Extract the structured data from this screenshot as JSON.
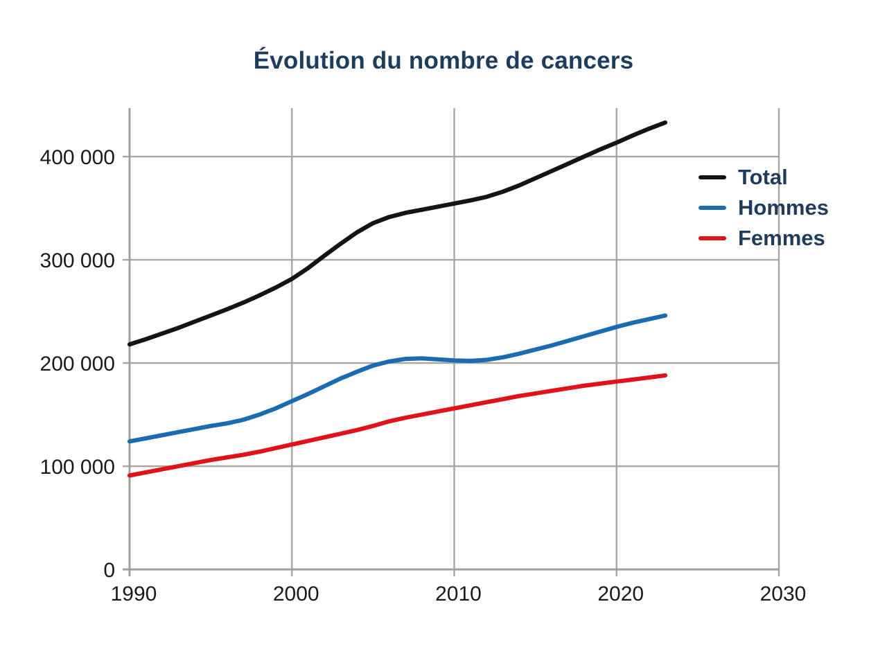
{
  "chart_data": {
    "type": "line",
    "title": "Évolution du nombre de cancers",
    "xlabel": "",
    "ylabel": "",
    "xlim": [
      1990,
      2030
    ],
    "ylim": [
      0,
      447000
    ],
    "grid": true,
    "legend_position": "right-inside",
    "x_ticks": [
      {
        "value": 1990,
        "label": "1990"
      },
      {
        "value": 2000,
        "label": "2000"
      },
      {
        "value": 2010,
        "label": "2010"
      },
      {
        "value": 2020,
        "label": "2020"
      },
      {
        "value": 2030,
        "label": "2030"
      }
    ],
    "y_ticks": [
      {
        "value": 0,
        "label": "0"
      },
      {
        "value": 100000,
        "label": "100 000"
      },
      {
        "value": 200000,
        "label": "200 000"
      },
      {
        "value": 300000,
        "label": "300 000"
      },
      {
        "value": 400000,
        "label": "400 000"
      }
    ],
    "x": [
      1990,
      1991,
      1992,
      1993,
      1994,
      1995,
      1996,
      1997,
      1998,
      1999,
      2000,
      2001,
      2002,
      2003,
      2004,
      2005,
      2006,
      2007,
      2008,
      2009,
      2010,
      2011,
      2012,
      2013,
      2014,
      2015,
      2016,
      2017,
      2018,
      2019,
      2020,
      2021,
      2022,
      2023
    ],
    "series": [
      {
        "name": "Total",
        "color": "#141414",
        "values": [
          218000,
          223000,
          228500,
          234000,
          240000,
          246000,
          252000,
          258500,
          265500,
          273000,
          281500,
          292000,
          304000,
          315500,
          326500,
          335500,
          341500,
          345500,
          348500,
          351500,
          354500,
          357500,
          361000,
          366000,
          372000,
          379000,
          386000,
          393000,
          400000,
          407000,
          413500,
          420500,
          427000,
          433000
        ]
      },
      {
        "name": "Hommes",
        "color": "#1a6bb1",
        "values": [
          124000,
          127000,
          130000,
          133000,
          136000,
          139000,
          141500,
          145000,
          150000,
          156000,
          163000,
          170000,
          177500,
          185000,
          191500,
          197500,
          201500,
          204000,
          204500,
          203500,
          202500,
          202000,
          203000,
          205500,
          209000,
          213000,
          217000,
          221500,
          226000,
          230500,
          235000,
          239000,
          242500,
          246000
        ]
      },
      {
        "name": "Femmes",
        "color": "#e0121a",
        "values": [
          91000,
          94000,
          97000,
          100000,
          103000,
          106000,
          108500,
          111000,
          114000,
          117500,
          121000,
          124500,
          128000,
          131500,
          135000,
          139000,
          143500,
          147000,
          150000,
          153000,
          156000,
          159000,
          162000,
          165000,
          168000,
          170500,
          173000,
          175500,
          178000,
          180000,
          182000,
          184000,
          186000,
          188000
        ]
      }
    ],
    "colors": {
      "title_text": "#1d3c5e",
      "legend_text": "#1d3c5e",
      "tick_text": "#1a1a1a",
      "grid": "#aaa5a0",
      "axis": "#a49f9a",
      "background": "#ffffff"
    }
  }
}
